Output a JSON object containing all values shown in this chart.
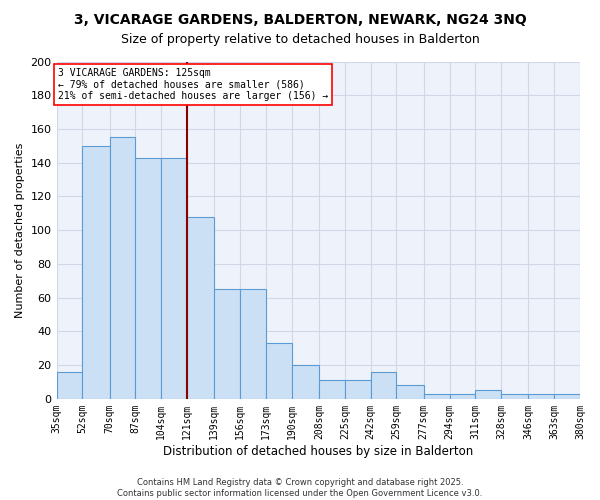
{
  "title": "3, VICARAGE GARDENS, BALDERTON, NEWARK, NG24 3NQ",
  "subtitle": "Size of property relative to detached houses in Balderton",
  "xlabel": "Distribution of detached houses by size in Balderton",
  "ylabel": "Number of detached properties",
  "categories": [
    "35sqm",
    "52sqm",
    "70sqm",
    "87sqm",
    "104sqm",
    "121sqm",
    "139sqm",
    "156sqm",
    "173sqm",
    "190sqm",
    "208sqm",
    "225sqm",
    "242sqm",
    "259sqm",
    "277sqm",
    "294sqm",
    "311sqm",
    "328sqm",
    "346sqm",
    "363sqm",
    "380sqm"
  ],
  "annotation_line1": "3 VICARAGE GARDENS: 125sqm",
  "annotation_line2": "← 79% of detached houses are smaller (586)",
  "annotation_line3": "21% of semi-detached houses are larger (156) →",
  "bar_color": "#cce0f5",
  "bar_edge_color": "#5b9bd5",
  "vline_color": "#8b0000",
  "grid_color": "#d0d8e8",
  "background_color": "#eef2fb",
  "footer_line1": "Contains HM Land Registry data © Crown copyright and database right 2025.",
  "footer_line2": "Contains public sector information licensed under the Open Government Licence v3.0.",
  "ylim": [
    0,
    200
  ],
  "yticks": [
    0,
    20,
    40,
    60,
    80,
    100,
    120,
    140,
    160,
    180,
    200
  ],
  "bin_edges": [
    35,
    52,
    70,
    87,
    104,
    121,
    139,
    156,
    173,
    190,
    208,
    225,
    242,
    259,
    277,
    294,
    311,
    328,
    346,
    363,
    380
  ],
  "hist_values": [
    16,
    150,
    155,
    143,
    143,
    108,
    65,
    65,
    33,
    20,
    11,
    11,
    16,
    8,
    3,
    3,
    5,
    3,
    3,
    3
  ],
  "vline_pos": 121
}
